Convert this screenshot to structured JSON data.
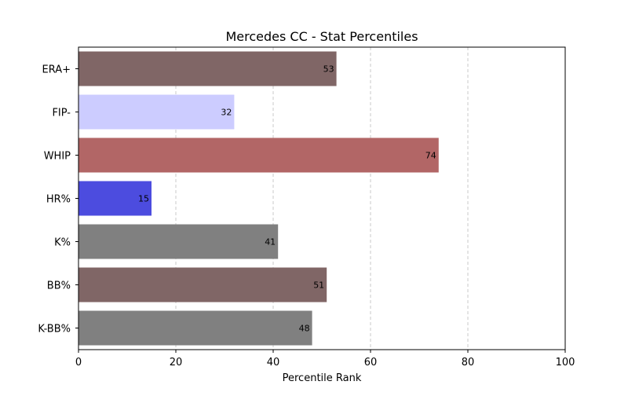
{
  "chart_data": {
    "type": "bar",
    "orientation": "horizontal",
    "title": "Mercedes CC - Stat Percentiles",
    "xlabel": "Percentile Rank",
    "ylabel": "",
    "xlim": [
      0,
      100
    ],
    "xticks": [
      0,
      20,
      40,
      60,
      80,
      100
    ],
    "grid": "x-dashed",
    "categories": [
      "ERA+",
      "FIP-",
      "WHIP",
      "HR%",
      "K%",
      "BB%",
      "K-BB%"
    ],
    "values": [
      53,
      32,
      74,
      15,
      41,
      51,
      48
    ],
    "bar_colors": [
      "#806666",
      "#ccccff",
      "#b26666",
      "#4c4cdf",
      "#808080",
      "#806666",
      "#808080"
    ],
    "data_labels": [
      "53",
      "32",
      "74",
      "15",
      "41",
      "51",
      "48"
    ]
  }
}
